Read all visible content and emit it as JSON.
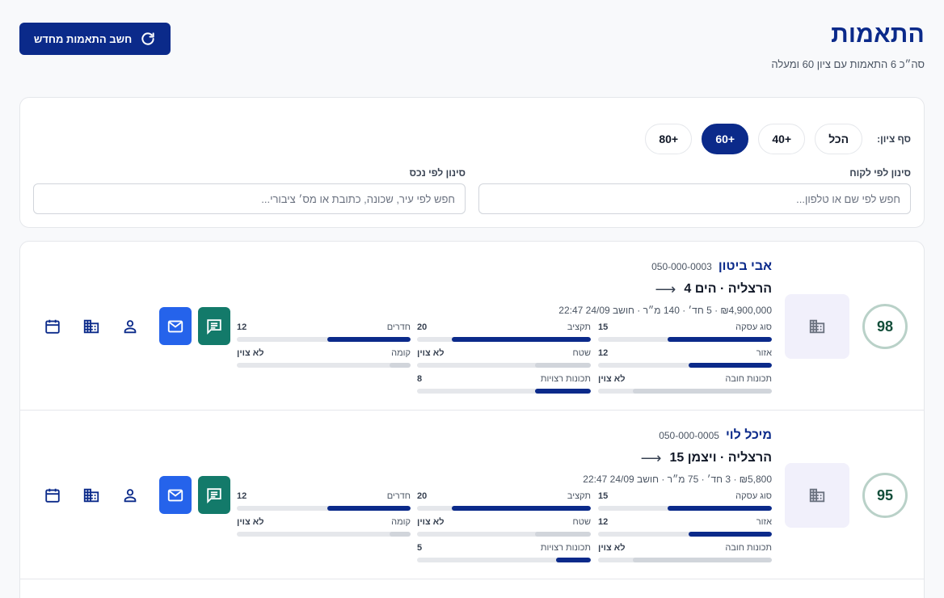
{
  "header": {
    "title": "התאמות",
    "subtitle": "סה״כ 6 התאמות עם ציון 60 ומעלה",
    "recalc_label": "חשב התאמות מחדש"
  },
  "filters": {
    "threshold_label": "סף ציון:",
    "chips": [
      "הכל",
      "+40",
      "+60",
      "+80"
    ],
    "active_chip": "+60",
    "client_label": "סינון לפי לקוח",
    "client_placeholder": "חפש לפי שם או טלפון...",
    "property_label": "סינון לפי נכס",
    "property_placeholder": "חפש לפי עיר, שכונה, כתובת או מס׳ ציבורי..."
  },
  "matches": [
    {
      "score": "98",
      "client_name": "אבי ביטון",
      "client_phone": "050-000-0003",
      "property_title": "הרצליה · הים 4",
      "details": "₪4,900,000 · 5 חד׳ · 140 מ״ר · חושב 24/09 22:47",
      "metrics": [
        {
          "label": "סוג עסקה",
          "value": "15",
          "fill": 0.6,
          "neutral": false
        },
        {
          "label": "תקציב",
          "value": "20",
          "fill": 0.8,
          "neutral": false
        },
        {
          "label": "חדרים",
          "value": "12",
          "fill": 0.48,
          "neutral": false
        },
        {
          "label": "אזור",
          "value": "12",
          "fill": 0.48,
          "neutral": false
        },
        {
          "label": "שטח",
          "value": "לא צוין",
          "fill": 0.32,
          "neutral": true
        },
        {
          "label": "קומה",
          "value": "לא צוין",
          "fill": 0.12,
          "neutral": true
        },
        {
          "label": "תכונות חובה",
          "value": "לא צוין",
          "fill": 0.8,
          "neutral": true
        },
        {
          "label": "תכונות רצויות",
          "value": "8",
          "fill": 0.32,
          "neutral": false
        }
      ]
    },
    {
      "score": "95",
      "client_name": "מיכל לוי",
      "client_phone": "050-000-0005",
      "property_title": "הרצליה · ויצמן 15",
      "details": "₪5,800 · 3 חד׳ · 75 מ״ר · חושב 24/09 22:47",
      "metrics": [
        {
          "label": "סוג עסקה",
          "value": "15",
          "fill": 0.6,
          "neutral": false
        },
        {
          "label": "תקציב",
          "value": "20",
          "fill": 0.8,
          "neutral": false
        },
        {
          "label": "חדרים",
          "value": "12",
          "fill": 0.48,
          "neutral": false
        },
        {
          "label": "אזור",
          "value": "12",
          "fill": 0.48,
          "neutral": false
        },
        {
          "label": "שטח",
          "value": "לא צוין",
          "fill": 0.32,
          "neutral": true
        },
        {
          "label": "קומה",
          "value": "לא צוין",
          "fill": 0.12,
          "neutral": true
        },
        {
          "label": "תכונות חובה",
          "value": "לא צוין",
          "fill": 0.8,
          "neutral": true
        },
        {
          "label": "תכונות רצויות",
          "value": "5",
          "fill": 0.2,
          "neutral": false
        }
      ]
    }
  ],
  "icons": {
    "recalc": "refresh-icon",
    "thumb": "building-icon",
    "actions": [
      "chat-icon",
      "email-icon",
      "person-icon",
      "building-icon",
      "calendar-icon"
    ]
  },
  "colors": {
    "primary": "#0b2a8a",
    "email": "#2563eb",
    "chat": "#137a6a",
    "score_ring": "#b9d1c8"
  }
}
